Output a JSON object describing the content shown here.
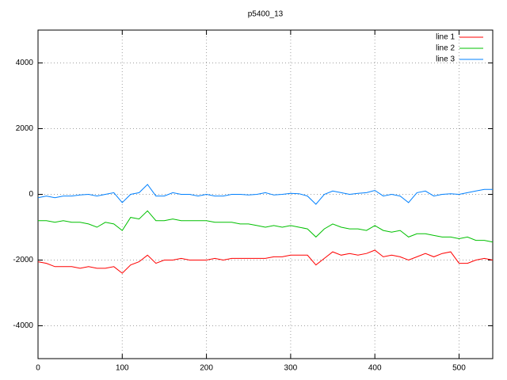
{
  "chart_data": {
    "type": "line",
    "title": "p5400_13",
    "x": [
      0,
      10,
      20,
      30,
      40,
      50,
      60,
      70,
      80,
      90,
      100,
      110,
      120,
      130,
      140,
      150,
      160,
      170,
      180,
      190,
      200,
      210,
      220,
      230,
      240,
      250,
      260,
      270,
      280,
      290,
      300,
      310,
      320,
      330,
      340,
      350,
      360,
      370,
      380,
      390,
      400,
      410,
      420,
      430,
      440,
      450,
      460,
      470,
      480,
      490,
      500,
      510,
      520,
      530,
      540
    ],
    "series": [
      {
        "name": "line 1",
        "color": "#ff0000",
        "values": [
          -2050,
          -2100,
          -2200,
          -2200,
          -2200,
          -2250,
          -2200,
          -2250,
          -2250,
          -2200,
          -2400,
          -2150,
          -2050,
          -1850,
          -2100,
          -2000,
          -2000,
          -1950,
          -2000,
          -2000,
          -2000,
          -1950,
          -2000,
          -1950,
          -1950,
          -1950,
          -1950,
          -1950,
          -1900,
          -1900,
          -1850,
          -1850,
          -1850,
          -2150,
          -1950,
          -1750,
          -1850,
          -1800,
          -1850,
          -1800,
          -1700,
          -1900,
          -1850,
          -1900,
          -2000,
          -1900,
          -1800,
          -1900,
          -1800,
          -1750,
          -2100,
          -2100,
          -2000,
          -1950,
          -2000
        ]
      },
      {
        "name": "line 2",
        "color": "#00c000",
        "values": [
          -800,
          -800,
          -850,
          -800,
          -850,
          -850,
          -900,
          -1000,
          -850,
          -900,
          -1100,
          -700,
          -750,
          -500,
          -800,
          -800,
          -750,
          -800,
          -800,
          -800,
          -800,
          -850,
          -850,
          -850,
          -900,
          -900,
          -950,
          -1000,
          -950,
          -1000,
          -950,
          -1000,
          -1050,
          -1300,
          -1050,
          -900,
          -1000,
          -1050,
          -1050,
          -1100,
          -950,
          -1100,
          -1150,
          -1100,
          -1300,
          -1200,
          -1200,
          -1250,
          -1300,
          -1300,
          -1350,
          -1300,
          -1400,
          -1400,
          -1450
        ]
      },
      {
        "name": "line 3",
        "color": "#0080ff",
        "values": [
          -100,
          -50,
          -100,
          -50,
          -50,
          -20,
          0,
          -50,
          0,
          50,
          -250,
          0,
          50,
          300,
          -50,
          -50,
          50,
          0,
          0,
          -50,
          0,
          -50,
          -50,
          0,
          0,
          -20,
          0,
          50,
          -20,
          0,
          30,
          20,
          -50,
          -300,
          0,
          100,
          50,
          0,
          30,
          50,
          120,
          -50,
          0,
          -50,
          -250,
          50,
          100,
          -50,
          0,
          20,
          0,
          50,
          100,
          150,
          150
        ]
      }
    ],
    "xlim": [
      0,
      540
    ],
    "xticks": [
      0,
      100,
      200,
      300,
      400,
      500
    ],
    "ylim": [
      -5000,
      5000
    ],
    "yticks": [
      -4000,
      -2000,
      0,
      2000,
      4000
    ],
    "grid": true,
    "legend": "top-right"
  }
}
